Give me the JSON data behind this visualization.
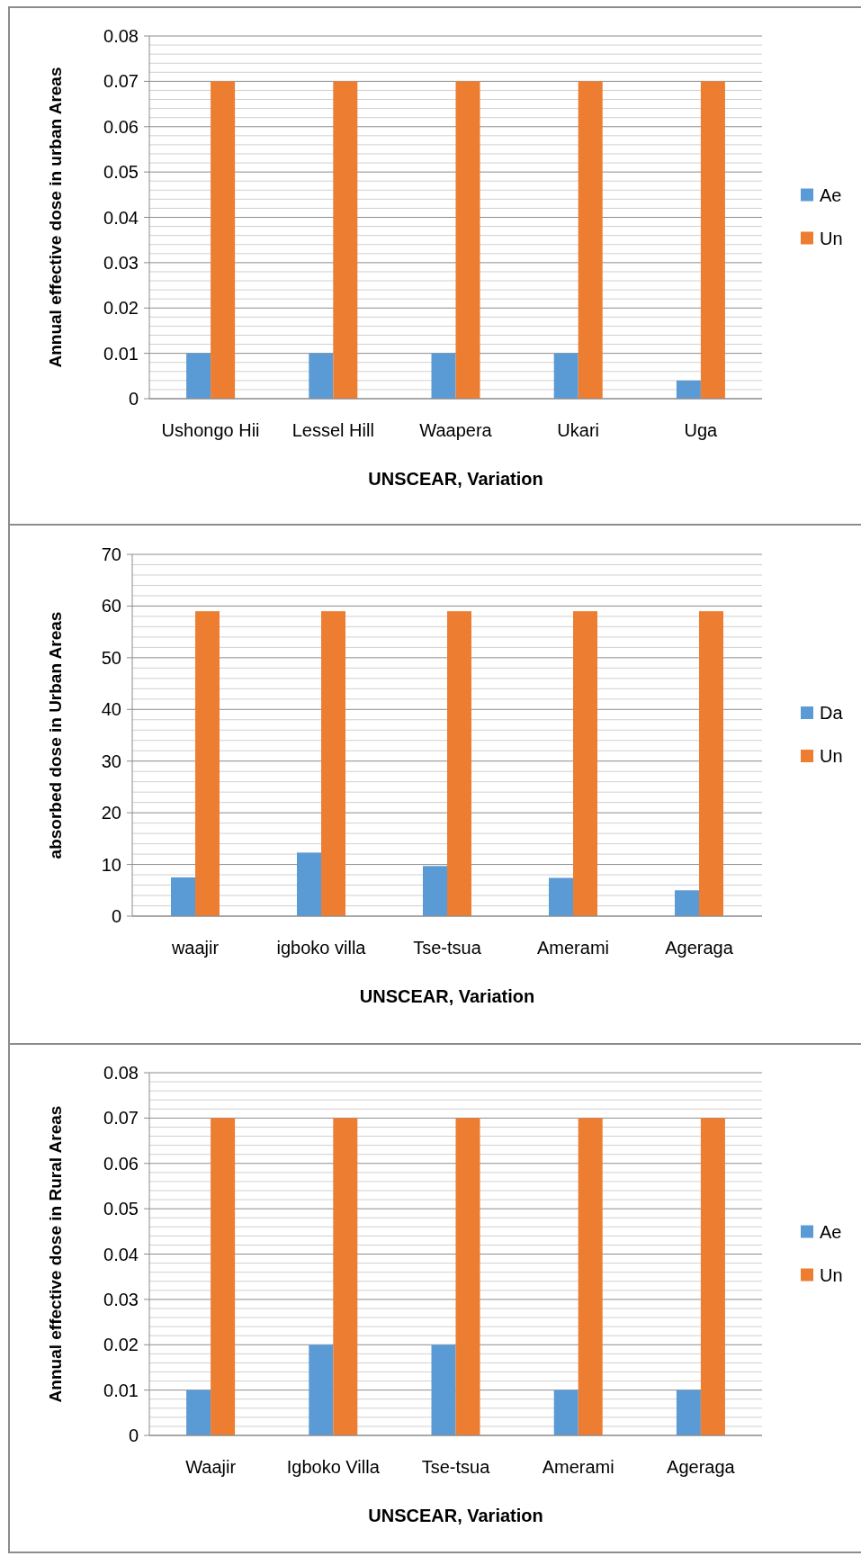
{
  "chart_data": [
    {
      "type": "bar",
      "xlabel": "UNSCEAR, Variation",
      "ylabel": "Annual effective dose in urban Areas",
      "categories": [
        "Ushongo Hii",
        "Lessel Hill",
        "Waapera",
        "Ukari",
        "Uga"
      ],
      "series": [
        {
          "name": "Ae",
          "color": "#5b9bd5",
          "values": [
            0.01,
            0.01,
            0.01,
            0.01,
            0.004
          ]
        },
        {
          "name": "Un",
          "color": "#ed7d31",
          "values": [
            0.07,
            0.07,
            0.07,
            0.07,
            0.07
          ]
        }
      ],
      "ylim": [
        0,
        0.08
      ],
      "yticks": [
        0,
        {
          "value": 0.002,
          "label": null
        },
        {
          "value": 0.004,
          "label": null
        },
        {
          "value": 0.006,
          "label": null
        },
        {
          "value": 0.008,
          "label": null
        },
        0.01,
        {
          "value": 0.012,
          "label": null
        },
        {
          "value": 0.014,
          "label": null
        },
        {
          "value": 0.016,
          "label": null
        },
        {
          "value": 0.018,
          "label": null
        },
        0.02,
        {
          "value": 0.022,
          "label": null
        },
        {
          "value": 0.024,
          "label": null
        },
        {
          "value": 0.026,
          "label": null
        },
        {
          "value": 0.028,
          "label": null
        },
        0.03,
        {
          "value": 0.032,
          "label": null
        },
        {
          "value": 0.034,
          "label": null
        },
        {
          "value": 0.036,
          "label": null
        },
        {
          "value": 0.038,
          "label": null
        },
        0.04,
        {
          "value": 0.042,
          "label": null
        },
        {
          "value": 0.044,
          "label": null
        },
        {
          "value": 0.046,
          "label": null
        },
        {
          "value": 0.048,
          "label": null
        },
        0.05,
        {
          "value": 0.052,
          "label": null
        },
        {
          "value": 0.054,
          "label": null
        },
        {
          "value": 0.056,
          "label": null
        },
        {
          "value": 0.058,
          "label": null
        },
        0.06,
        {
          "value": 0.062,
          "label": null
        },
        {
          "value": 0.064,
          "label": null
        },
        {
          "value": 0.066,
          "label": null
        },
        {
          "value": 0.068,
          "label": null
        },
        0.07,
        {
          "value": 0.072,
          "label": null
        },
        {
          "value": 0.074,
          "label": null
        },
        {
          "value": 0.076,
          "label": null
        },
        {
          "value": 0.078,
          "label": null
        },
        0.08
      ],
      "grid": "y",
      "legend": "right"
    },
    {
      "type": "bar",
      "xlabel": "UNSCEAR, Variation",
      "ylabel": "absorbed dose in Urban Areas",
      "categories": [
        "waajir",
        "igboko villa",
        "Tse-tsua",
        "Amerami",
        "Ageraga"
      ],
      "series": [
        {
          "name": "Da",
          "color": "#5b9bd5",
          "values": [
            7.5,
            12.3,
            9.7,
            7.4,
            5
          ]
        },
        {
          "name": "Un",
          "color": "#ed7d31",
          "values": [
            59,
            59,
            59,
            59,
            59
          ]
        }
      ],
      "ylim": [
        0,
        70
      ],
      "yticks": [
        0,
        {
          "value": 2,
          "label": null
        },
        {
          "value": 4,
          "label": null
        },
        {
          "value": 6,
          "label": null
        },
        {
          "value": 8,
          "label": null
        },
        10,
        {
          "value": 12,
          "label": null
        },
        {
          "value": 14,
          "label": null
        },
        {
          "value": 16,
          "label": null
        },
        {
          "value": 18,
          "label": null
        },
        20,
        {
          "value": 22,
          "label": null
        },
        {
          "value": 24,
          "label": null
        },
        {
          "value": 26,
          "label": null
        },
        {
          "value": 28,
          "label": null
        },
        30,
        {
          "value": 32,
          "label": null
        },
        {
          "value": 34,
          "label": null
        },
        {
          "value": 36,
          "label": null
        },
        {
          "value": 38,
          "label": null
        },
        40,
        {
          "value": 42,
          "label": null
        },
        {
          "value": 44,
          "label": null
        },
        {
          "value": 46,
          "label": null
        },
        {
          "value": 48,
          "label": null
        },
        50,
        {
          "value": 52,
          "label": null
        },
        {
          "value": 54,
          "label": null
        },
        {
          "value": 56,
          "label": null
        },
        {
          "value": 58,
          "label": null
        },
        60,
        {
          "value": 62,
          "label": null
        },
        {
          "value": 64,
          "label": null
        },
        {
          "value": 66,
          "label": null
        },
        {
          "value": 68,
          "label": null
        },
        70
      ],
      "grid": "y",
      "legend": "right"
    },
    {
      "type": "bar",
      "xlabel": "UNSCEAR, Variation",
      "ylabel": "Annual effective dose in Rural Areas",
      "categories": [
        "Waajir",
        "Igboko Villa",
        "Tse-tsua",
        "Amerami",
        "Ageraga"
      ],
      "series": [
        {
          "name": "Ae",
          "color": "#5b9bd5",
          "values": [
            0.01,
            0.02,
            0.02,
            0.01,
            0.01
          ]
        },
        {
          "name": "Un",
          "color": "#ed7d31",
          "values": [
            0.07,
            0.07,
            0.07,
            0.07,
            0.07
          ]
        }
      ],
      "ylim": [
        0,
        0.08
      ],
      "yticks": [
        0,
        {
          "value": 0.002,
          "label": null
        },
        {
          "value": 0.004,
          "label": null
        },
        {
          "value": 0.006,
          "label": null
        },
        {
          "value": 0.008,
          "label": null
        },
        0.01,
        {
          "value": 0.012,
          "label": null
        },
        {
          "value": 0.014,
          "label": null
        },
        {
          "value": 0.016,
          "label": null
        },
        {
          "value": 0.018,
          "label": null
        },
        0.02,
        {
          "value": 0.022,
          "label": null
        },
        {
          "value": 0.024,
          "label": null
        },
        {
          "value": 0.026,
          "label": null
        },
        {
          "value": 0.028,
          "label": null
        },
        0.03,
        {
          "value": 0.032,
          "label": null
        },
        {
          "value": 0.034,
          "label": null
        },
        {
          "value": 0.036,
          "label": null
        },
        {
          "value": 0.038,
          "label": null
        },
        0.04,
        {
          "value": 0.042,
          "label": null
        },
        {
          "value": 0.044,
          "label": null
        },
        {
          "value": 0.046,
          "label": null
        },
        {
          "value": 0.048,
          "label": null
        },
        0.05,
        {
          "value": 0.052,
          "label": null
        },
        {
          "value": 0.054,
          "label": null
        },
        {
          "value": 0.056,
          "label": null
        },
        {
          "value": 0.058,
          "label": null
        },
        0.06,
        {
          "value": 0.062,
          "label": null
        },
        {
          "value": 0.064,
          "label": null
        },
        {
          "value": 0.066,
          "label": null
        },
        {
          "value": 0.068,
          "label": null
        },
        0.07,
        {
          "value": 0.072,
          "label": null
        },
        {
          "value": 0.074,
          "label": null
        },
        {
          "value": 0.076,
          "label": null
        },
        {
          "value": 0.078,
          "label": null
        },
        0.08
      ],
      "grid": "y",
      "legend": "right"
    }
  ]
}
